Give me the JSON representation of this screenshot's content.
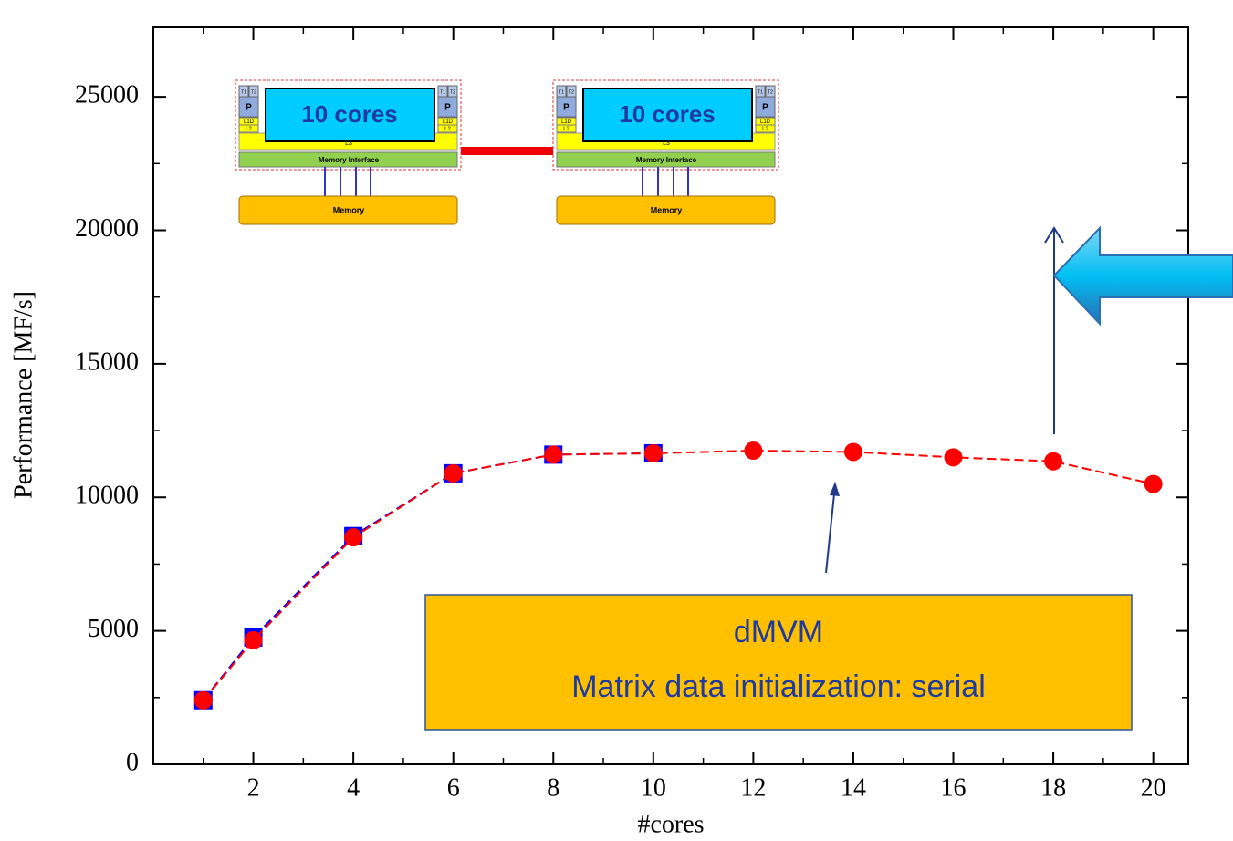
{
  "chart_data": {
    "type": "line",
    "xlabel": "#cores",
    "ylabel": "Performance [MF/s]",
    "xlim": [
      0,
      20.7
    ],
    "ylim": [
      0,
      27600
    ],
    "xticks": [
      2,
      4,
      6,
      8,
      10,
      12,
      14,
      16,
      18,
      20
    ],
    "yticks": [
      0,
      5000,
      10000,
      15000,
      20000,
      25000
    ],
    "series": [
      {
        "color": "#0000ff",
        "marker": "square",
        "x": [
          1,
          2,
          4,
          6,
          8,
          10
        ],
        "values": [
          2400,
          4750,
          8550,
          10900,
          11600,
          11650
        ]
      },
      {
        "color": "#ff0000",
        "marker": "circle",
        "x": [
          1,
          2,
          4,
          6,
          8,
          10,
          12,
          14,
          16,
          18,
          20
        ],
        "values": [
          2400,
          4650,
          8500,
          10900,
          11600,
          11650,
          11750,
          11700,
          11500,
          11350,
          10500
        ]
      }
    ],
    "annotation": [
      "dMVM",
      "Matrix data initialization: serial"
    ],
    "socket": {
      "cores": "10 cores",
      "threads": [
        "T1",
        "T2"
      ],
      "core": "P",
      "l1": "L1D",
      "l2": "L2",
      "l3": "L3",
      "interface": "Memory Interface",
      "memory": "Memory"
    }
  }
}
